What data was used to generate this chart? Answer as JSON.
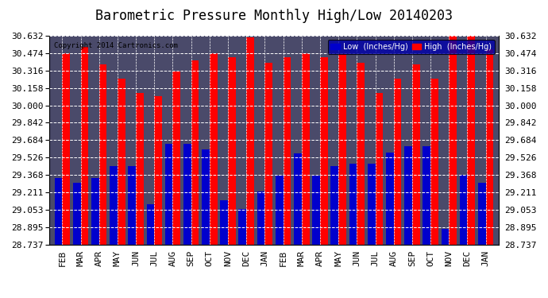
{
  "title": "Barometric Pressure Monthly High/Low 20140203",
  "copyright": "Copyright 2014 Cartronics.com",
  "legend_low": "Low  (Inches/Hg)",
  "legend_high": "High  (Inches/Hg)",
  "months": [
    "FEB",
    "MAR",
    "APR",
    "MAY",
    "JUN",
    "JUL",
    "AUG",
    "SEP",
    "OCT",
    "NOV",
    "DEC",
    "JAN",
    "FEB",
    "MAR",
    "APR",
    "MAY",
    "JUN",
    "JUL",
    "AUG",
    "SEP",
    "OCT",
    "NOV",
    "DEC",
    "JAN"
  ],
  "high_values": [
    30.47,
    30.53,
    30.37,
    30.24,
    30.11,
    30.08,
    30.31,
    30.41,
    30.47,
    30.44,
    30.62,
    30.39,
    30.44,
    30.47,
    30.44,
    30.47,
    30.39,
    30.11,
    30.24,
    30.37,
    30.24,
    30.63,
    30.63,
    30.51
  ],
  "low_values": [
    29.34,
    29.3,
    29.34,
    29.45,
    29.45,
    29.1,
    29.65,
    29.65,
    29.6,
    29.14,
    29.06,
    29.22,
    29.36,
    29.56,
    29.36,
    29.45,
    29.47,
    29.47,
    29.57,
    29.63,
    29.63,
    28.88,
    29.37,
    29.3
  ],
  "ylim_min": 28.737,
  "ylim_max": 30.632,
  "yticks": [
    28.737,
    28.895,
    29.053,
    29.211,
    29.368,
    29.526,
    29.684,
    29.842,
    30.0,
    30.158,
    30.316,
    30.474,
    30.632
  ],
  "bg_color": "#ffffff",
  "plot_bg_color": "#4a4a6a",
  "bar_color_high": "#ff0000",
  "bar_color_low": "#0000cc",
  "grid_color": "#aaaaaa",
  "title_fontsize": 12,
  "tick_fontsize": 8,
  "bar_width": 0.42
}
